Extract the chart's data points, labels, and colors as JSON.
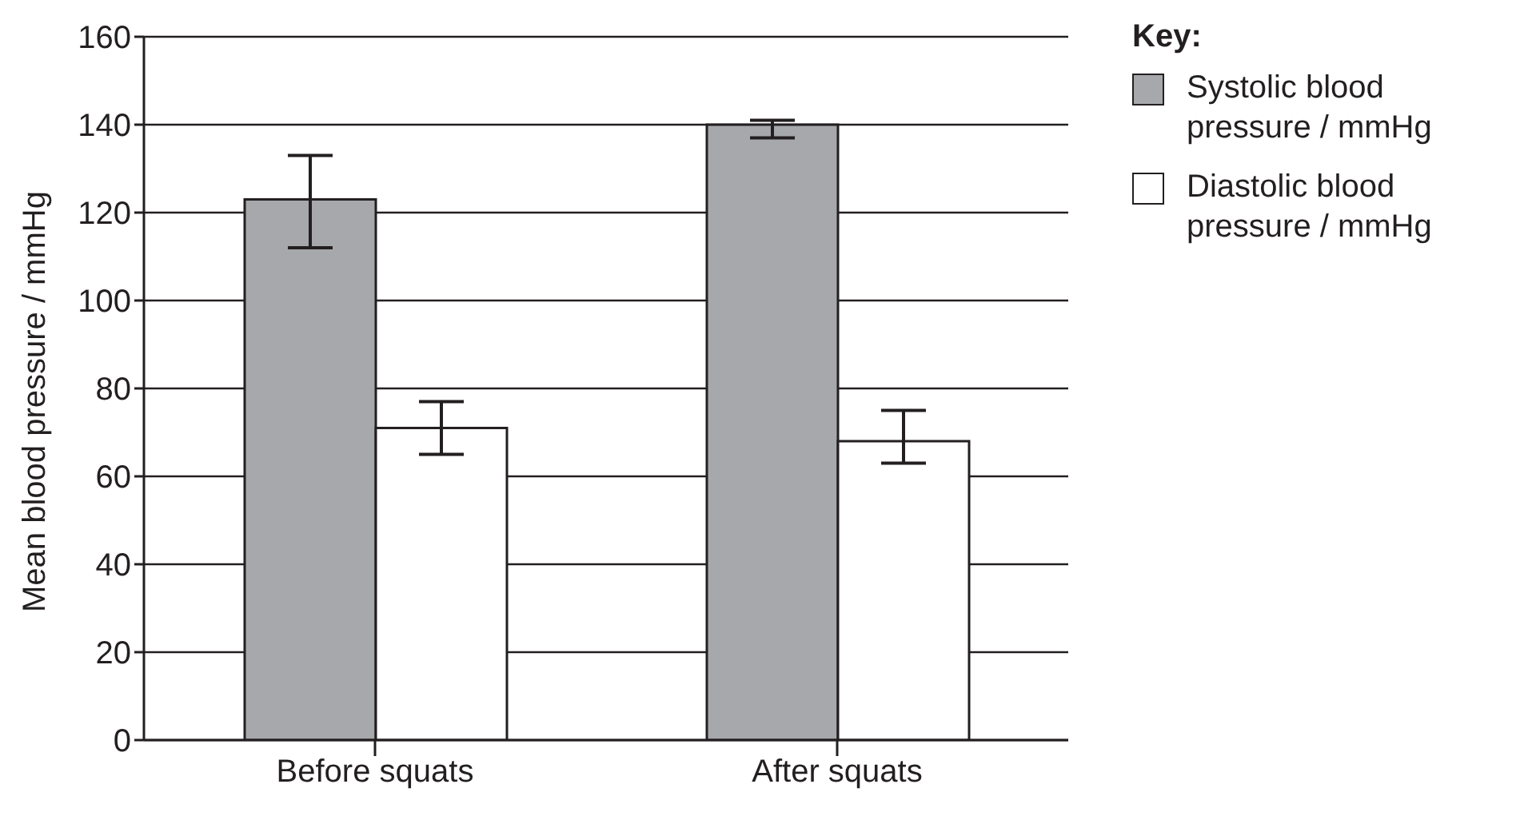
{
  "chart_data": {
    "type": "bar",
    "ylabel": "Mean blood pressure / mmHg",
    "legend_title": "Key:",
    "categories": [
      "Before squats",
      "After squats"
    ],
    "series": [
      {
        "name": "Systolic blood pressure / mmHg",
        "color": "#a7a8ab",
        "values": [
          123,
          140
        ],
        "errors": [
          [
            112,
            133
          ],
          [
            137,
            141
          ]
        ]
      },
      {
        "name": "Diastolic blood pressure / mmHg",
        "color": "#ffffff",
        "values": [
          71,
          68
        ],
        "errors": [
          [
            65,
            77
          ],
          [
            63,
            75
          ]
        ]
      }
    ],
    "ylim": [
      0,
      160
    ],
    "yticks": [
      0,
      20,
      40,
      60,
      80,
      100,
      120,
      140,
      160
    ],
    "grid": "y",
    "legend": "top right"
  }
}
